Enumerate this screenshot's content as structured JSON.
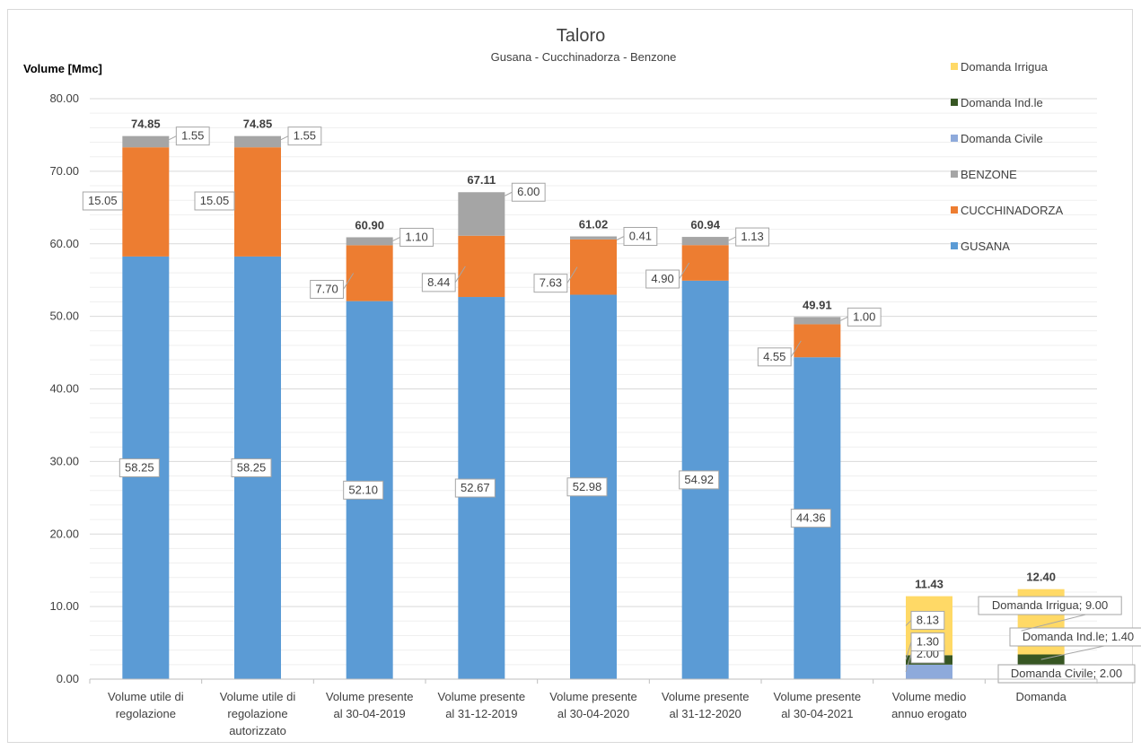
{
  "chart_data": {
    "type": "bar",
    "stacked": true,
    "title": "Taloro",
    "subtitle": "Gusana - Cucchinadorza - Benzone",
    "ylabel": "Volume [Mmc]",
    "xlabel": "",
    "ylim": [
      0,
      80
    ],
    "ytick_step": 10,
    "ytick_labels": [
      "0.00",
      "10.00",
      "20.00",
      "30.00",
      "40.00",
      "50.00",
      "60.00",
      "70.00",
      "80.00"
    ],
    "grid": true,
    "legend_position": "right",
    "categories": [
      [
        "Volume utile di",
        "regolazione"
      ],
      [
        "Volume utile di",
        "regolazione",
        "autorizzato"
      ],
      [
        "Volume presente",
        "al  30-04-2019"
      ],
      [
        "Volume presente",
        "al  31-12-2019"
      ],
      [
        "Volume presente",
        "al  30-04-2020"
      ],
      [
        "Volume presente",
        "al  31-12-2020"
      ],
      [
        "Volume presente",
        "al  30-04-2021"
      ],
      [
        "Volume medio",
        "annuo erogato"
      ],
      [
        "Domanda"
      ]
    ],
    "series": [
      {
        "name": "GUSANA",
        "color": "#5b9bd5",
        "values": [
          58.25,
          58.25,
          52.1,
          52.67,
          52.98,
          54.92,
          44.36,
          null,
          null
        ],
        "labels": [
          "58.25",
          "58.25",
          "52.10",
          "52.67",
          "52.98",
          "54.92",
          "44.36",
          null,
          null
        ]
      },
      {
        "name": "CUCCHINADORZA",
        "color": "#ed7d31",
        "values": [
          15.05,
          15.05,
          7.7,
          8.44,
          7.63,
          4.9,
          4.55,
          null,
          null
        ],
        "labels": [
          "15.05",
          "15.05",
          "7.70",
          "8.44",
          "7.63",
          "4.90",
          "4.55",
          null,
          null
        ]
      },
      {
        "name": "BENZONE",
        "color": "#a5a5a5",
        "values": [
          1.55,
          1.55,
          1.1,
          6.0,
          0.41,
          1.13,
          1.0,
          null,
          null
        ],
        "labels": [
          "1.55",
          "1.55",
          "1.10",
          "6.00",
          "0.41",
          "1.13",
          "1.00",
          null,
          null
        ]
      },
      {
        "name": "Domanda Civile",
        "color": "#8eaadb",
        "values": [
          null,
          null,
          null,
          null,
          null,
          null,
          null,
          2.0,
          2.0
        ],
        "labels": [
          null,
          null,
          null,
          null,
          null,
          null,
          null,
          "2.00",
          "Domanda Civile; 2.00"
        ]
      },
      {
        "name": "Domanda Ind.le",
        "color": "#375623",
        "values": [
          null,
          null,
          null,
          null,
          null,
          null,
          null,
          1.3,
          1.4
        ],
        "labels": [
          null,
          null,
          null,
          null,
          null,
          null,
          null,
          "1.30",
          "Domanda Ind.le; 1.40"
        ]
      },
      {
        "name": "Domanda Irrigua",
        "color": "#ffd966",
        "values": [
          null,
          null,
          null,
          null,
          null,
          null,
          null,
          8.13,
          9.0
        ],
        "labels": [
          null,
          null,
          null,
          null,
          null,
          null,
          null,
          "8.13",
          "Domanda Irrigua; 9.00"
        ]
      }
    ],
    "totals": [
      "74.85",
      "74.85",
      "60.90",
      "67.11",
      "61.02",
      "60.94",
      "49.91",
      "11.43",
      "12.40"
    ],
    "legend_order": [
      "Domanda Irrigua",
      "Domanda Ind.le",
      "Domanda Civile",
      "BENZONE",
      "CUCCHINADORZA",
      "GUSANA"
    ]
  }
}
